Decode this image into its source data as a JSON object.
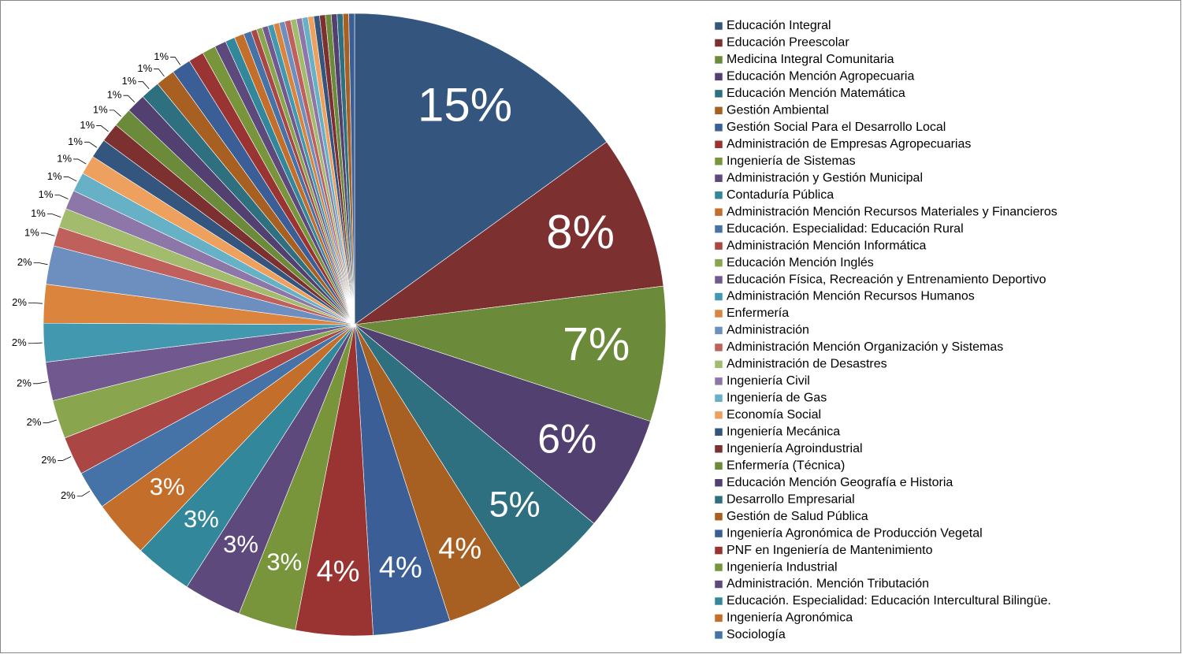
{
  "chart_data": {
    "type": "pie",
    "categories": [
      "Educación Integral",
      "Educación Preescolar",
      "Medicina Integral Comunitaria",
      "Educación Mención Agropecuaria",
      "Educación Mención Matemática",
      "Gestión Ambiental",
      "Gestión Social Para el Desarrollo Local",
      "Administración de Empresas Agropecuarias",
      "Ingeniería de Sistemas",
      "Administración y Gestión Municipal",
      "Contaduría Pública",
      "Administración Mención Recursos Materiales y Financieros",
      "Educación. Especialidad: Educación Rural",
      "Administración Mención Informática",
      "Educación Mención Inglés",
      "Educación Física, Recreación y Entrenamiento Deportivo",
      "Administración Mención Recursos Humanos",
      "Enfermería",
      "Administración",
      "Administración Mención Organización y Sistemas",
      "Administración de Desastres",
      "Ingeniería Civil",
      "Ingeniería de Gas",
      "Economía Social",
      "Ingeniería Mecánica",
      "Ingeniería Agroindustrial",
      "Enfermería (Técnica)",
      "Educación Mención Geografía e Historia",
      "Desarrollo Empresarial",
      "Gestión de Salud Pública",
      "Ingeniería Agronómica de Producción Vegetal",
      "PNF en Ingeniería de Mantenimiento",
      "Ingeniería Industrial",
      "Administración. Mención Tributación",
      "Educación. Especialidad: Educación Intercultural Bilingüe.",
      "Ingeniería Agronómica",
      "Sociología",
      null,
      null,
      null,
      null,
      null,
      null,
      null,
      null,
      null,
      null,
      null,
      null,
      null,
      null,
      null,
      null,
      null,
      null
    ],
    "values": [
      15,
      8,
      7,
      6,
      5,
      4,
      4,
      4,
      3,
      3,
      3,
      3,
      2,
      2,
      2,
      2,
      2,
      2,
      2,
      1,
      1,
      1,
      1,
      1,
      1,
      1,
      1,
      1,
      1,
      1,
      1,
      0.8,
      0.7,
      0.6,
      0.5,
      0.5,
      0.4,
      0.3,
      0.3,
      0.3,
      0.3,
      0.3,
      0.3,
      0.3,
      0.3,
      0.3,
      0.3,
      0.3,
      0.3,
      0.3,
      0.3,
      0.3,
      0.3,
      0.3,
      0.3
    ],
    "value_labels": [
      "15%",
      "8%",
      "7%",
      "6%",
      "5%",
      "4%",
      "4%",
      "4%",
      "3%",
      "3%",
      "3%",
      "3%",
      "2%",
      "2%",
      "2%",
      "2%",
      "2%",
      "2%",
      "2%",
      "1%",
      "1%",
      "1%",
      "1%",
      "1%",
      "1%",
      "1%",
      "1%",
      "1%",
      "1%",
      "1%",
      "1%",
      null,
      null,
      null,
      null,
      null,
      null,
      null,
      null,
      null,
      null,
      null,
      null,
      null,
      null,
      null,
      null,
      null,
      null,
      null,
      null,
      null,
      null,
      null,
      null
    ],
    "palette": [
      "#34557e",
      "#7d3030",
      "#6b8a3a",
      "#524070",
      "#2f7080",
      "#a85f22",
      "#3a5e95",
      "#9a3433",
      "#78953c",
      "#5d497c",
      "#33879a",
      "#c46e2c",
      "#4572a7",
      "#aa4643",
      "#89a54e",
      "#71588f",
      "#4198af",
      "#db843d",
      "#6d8fbf",
      "#c0605d",
      "#a2bb6d",
      "#8d77a9",
      "#67b1c6",
      "#eea05f"
    ]
  }
}
